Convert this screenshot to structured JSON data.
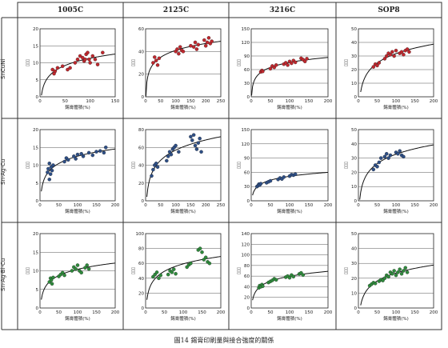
{
  "columns": [
    "1005C",
    "2125C",
    "3216C",
    "SOP8"
  ],
  "rows": [
    "SnCuNi",
    "Sn-Ag-Cu",
    "Sn-Ag-Bi-Cu"
  ],
  "caption": "圖14 錫膏印刷量與接合強度的關係",
  "colors": {
    "SnCuNi": "#c0282e",
    "Sn-Ag-Cu": "#2e4f86",
    "Sn-Ag-Bi-Cu": "#2f8a3c",
    "curve": "#111111"
  },
  "chart_data": [
    {
      "type": "scatter",
      "row": "SnCuNi",
      "column": "1005C",
      "xlabel": "錫膏體積(%)",
      "ylabel": "▯▯▯",
      "xlim": [
        0,
        150
      ],
      "ylim": [
        0,
        20
      ],
      "xticks": [
        0,
        50,
        100,
        150
      ],
      "yticks": [
        0,
        5,
        10,
        15,
        20
      ],
      "points": [
        [
          25,
          8
        ],
        [
          30,
          7.5
        ],
        [
          28,
          6.8
        ],
        [
          35,
          8.5
        ],
        [
          45,
          9
        ],
        [
          55,
          8
        ],
        [
          60,
          8.5
        ],
        [
          70,
          10
        ],
        [
          75,
          11
        ],
        [
          80,
          12
        ],
        [
          85,
          11.5
        ],
        [
          88,
          10.5
        ],
        [
          90,
          11
        ],
        [
          92,
          12.5
        ],
        [
          95,
          13
        ],
        [
          98,
          11
        ],
        [
          100,
          10
        ],
        [
          105,
          12
        ],
        [
          110,
          11
        ],
        [
          115,
          9.5
        ],
        [
          125,
          13
        ]
      ]
    },
    {
      "type": "scatter",
      "row": "SnCuNi",
      "column": "2125C",
      "xlabel": "錫膏體積(%)",
      "ylabel": "▯▯▯",
      "xlim": [
        0,
        250
      ],
      "ylim": [
        0,
        60
      ],
      "xticks": [
        0,
        50,
        100,
        150,
        200,
        250
      ],
      "yticks": [
        0,
        20,
        40,
        60
      ],
      "points": [
        [
          25,
          30
        ],
        [
          30,
          35
        ],
        [
          35,
          32
        ],
        [
          40,
          28
        ],
        [
          45,
          34
        ],
        [
          100,
          40
        ],
        [
          105,
          42
        ],
        [
          110,
          38
        ],
        [
          115,
          44
        ],
        [
          120,
          41
        ],
        [
          125,
          40
        ],
        [
          150,
          45
        ],
        [
          160,
          44
        ],
        [
          165,
          48
        ],
        [
          170,
          42
        ],
        [
          175,
          46
        ],
        [
          195,
          50
        ],
        [
          200,
          45
        ],
        [
          205,
          48
        ],
        [
          210,
          52
        ],
        [
          215,
          47
        ],
        [
          220,
          49
        ]
      ]
    },
    {
      "type": "scatter",
      "row": "SnCuNi",
      "column": "3216C",
      "xlabel": "錫膏體積(%)",
      "ylabel": "▯▯▯",
      "xlim": [
        0,
        200
      ],
      "ylim": [
        0,
        150
      ],
      "xticks": [
        0,
        50,
        100,
        150,
        200
      ],
      "yticks": [
        0,
        30,
        60,
        90,
        120,
        150
      ],
      "points": [
        [
          25,
          55
        ],
        [
          28,
          58
        ],
        [
          30,
          56
        ],
        [
          50,
          62
        ],
        [
          55,
          68
        ],
        [
          60,
          65
        ],
        [
          65,
          70
        ],
        [
          85,
          72
        ],
        [
          90,
          75
        ],
        [
          95,
          70
        ],
        [
          100,
          78
        ],
        [
          105,
          74
        ],
        [
          110,
          80
        ],
        [
          115,
          76
        ],
        [
          130,
          85
        ],
        [
          135,
          82
        ],
        [
          140,
          78
        ],
        [
          145,
          84
        ]
      ]
    },
    {
      "type": "scatter",
      "row": "SnCuNi",
      "column": "SOP8",
      "xlabel": "錫膏體積(%)",
      "ylabel": "▯▯▯",
      "xlim": [
        0,
        200
      ],
      "ylim": [
        0,
        50
      ],
      "xticks": [
        0,
        50,
        100,
        150,
        200
      ],
      "yticks": [
        0,
        10,
        20,
        30,
        40,
        50
      ],
      "points": [
        [
          40,
          22
        ],
        [
          45,
          24
        ],
        [
          50,
          23
        ],
        [
          55,
          25
        ],
        [
          70,
          28
        ],
        [
          75,
          30
        ],
        [
          80,
          32
        ],
        [
          85,
          31
        ],
        [
          90,
          33
        ],
        [
          95,
          30
        ],
        [
          100,
          34
        ],
        [
          110,
          32
        ],
        [
          115,
          33
        ],
        [
          120,
          31
        ],
        [
          125,
          34
        ],
        [
          130,
          35
        ],
        [
          135,
          33
        ]
      ]
    },
    {
      "type": "scatter",
      "row": "Sn-Ag-Cu",
      "column": "1005C",
      "xlabel": "錫膏體積(%)",
      "ylabel": "▯▯▯",
      "xlim": [
        0,
        200
      ],
      "ylim": [
        0,
        20
      ],
      "xticks": [
        0,
        50,
        100,
        150,
        200
      ],
      "yticks": [
        0,
        5,
        10,
        15,
        20
      ],
      "points": [
        [
          20,
          8
        ],
        [
          22,
          9
        ],
        [
          25,
          6
        ],
        [
          28,
          7.5
        ],
        [
          30,
          9.5
        ],
        [
          32,
          8.5
        ],
        [
          35,
          10
        ],
        [
          25,
          10.5
        ],
        [
          65,
          11
        ],
        [
          70,
          12
        ],
        [
          75,
          11.5
        ],
        [
          90,
          12.5
        ],
        [
          95,
          11.8
        ],
        [
          100,
          13
        ],
        [
          110,
          13.2
        ],
        [
          115,
          12.5
        ],
        [
          130,
          13.5
        ],
        [
          140,
          12.8
        ],
        [
          150,
          13.8
        ],
        [
          160,
          14
        ],
        [
          170,
          13.5
        ],
        [
          175,
          15
        ]
      ]
    },
    {
      "type": "scatter",
      "row": "Sn-Ag-Cu",
      "column": "2125C",
      "xlabel": "錫膏體積(%)",
      "ylabel": "▯▯▯",
      "xlim": [
        0,
        250
      ],
      "ylim": [
        0,
        80
      ],
      "xticks": [
        0,
        50,
        100,
        150,
        200,
        250
      ],
      "yticks": [
        0,
        20,
        40,
        60,
        80
      ],
      "points": [
        [
          20,
          28
        ],
        [
          25,
          35
        ],
        [
          30,
          40
        ],
        [
          35,
          42
        ],
        [
          40,
          38
        ],
        [
          70,
          45
        ],
        [
          75,
          50
        ],
        [
          80,
          55
        ],
        [
          85,
          52
        ],
        [
          90,
          58
        ],
        [
          95,
          60
        ],
        [
          100,
          62
        ],
        [
          110,
          55
        ],
        [
          150,
          72
        ],
        [
          155,
          68
        ],
        [
          160,
          74
        ],
        [
          165,
          62
        ],
        [
          170,
          58
        ],
        [
          175,
          65
        ],
        [
          180,
          70
        ],
        [
          185,
          55
        ]
      ]
    },
    {
      "type": "scatter",
      "row": "Sn-Ag-Cu",
      "column": "3216C",
      "xlabel": "錫膏體積(%)",
      "ylabel": "▯▯▯",
      "xlim": [
        0,
        200
      ],
      "ylim": [
        0,
        150
      ],
      "xticks": [
        0,
        50,
        100,
        150,
        200
      ],
      "yticks": [
        0,
        30,
        60,
        90,
        120,
        150
      ],
      "points": [
        [
          15,
          30
        ],
        [
          18,
          32
        ],
        [
          20,
          35
        ],
        [
          22,
          33
        ],
        [
          25,
          36
        ],
        [
          40,
          38
        ],
        [
          45,
          40
        ],
        [
          50,
          42
        ],
        [
          70,
          45
        ],
        [
          75,
          48
        ],
        [
          80,
          46
        ],
        [
          85,
          50
        ],
        [
          100,
          52
        ],
        [
          105,
          55
        ],
        [
          110,
          54
        ],
        [
          115,
          56
        ]
      ]
    },
    {
      "type": "scatter",
      "row": "Sn-Ag-Cu",
      "column": "SOP8",
      "xlabel": "錫膏體積(%)",
      "ylabel": "▯▯▯",
      "xlim": [
        0,
        200
      ],
      "ylim": [
        0,
        50
      ],
      "xticks": [
        0,
        50,
        100,
        150,
        200
      ],
      "yticks": [
        0,
        10,
        20,
        30,
        40,
        50
      ],
      "points": [
        [
          40,
          22
        ],
        [
          45,
          25
        ],
        [
          50,
          24
        ],
        [
          55,
          27
        ],
        [
          60,
          30
        ],
        [
          70,
          31
        ],
        [
          75,
          33
        ],
        [
          80,
          30
        ],
        [
          85,
          32
        ],
        [
          100,
          34
        ],
        [
          105,
          33
        ],
        [
          110,
          35
        ],
        [
          115,
          32
        ],
        [
          120,
          31
        ]
      ]
    },
    {
      "type": "scatter",
      "row": "Sn-Ag-Bi-Cu",
      "column": "1005C",
      "xlabel": "錫膏體積(%)",
      "ylabel": "▯▯▯",
      "xlim": [
        0,
        200
      ],
      "ylim": [
        0,
        20
      ],
      "xticks": [
        0,
        50,
        100,
        150,
        200
      ],
      "yticks": [
        0,
        5,
        10,
        15,
        20
      ],
      "points": [
        [
          25,
          7
        ],
        [
          28,
          8
        ],
        [
          30,
          7.5
        ],
        [
          32,
          6.5
        ],
        [
          35,
          8.2
        ],
        [
          50,
          8.5
        ],
        [
          55,
          9
        ],
        [
          60,
          9.5
        ],
        [
          65,
          8.8
        ],
        [
          85,
          10
        ],
        [
          90,
          11
        ],
        [
          95,
          10.5
        ],
        [
          100,
          11.5
        ],
        [
          105,
          10
        ],
        [
          110,
          9.5
        ],
        [
          120,
          10.8
        ],
        [
          125,
          11.5
        ],
        [
          130,
          10.5
        ]
      ]
    },
    {
      "type": "scatter",
      "row": "Sn-Ag-Bi-Cu",
      "column": "2125C",
      "xlabel": "錫膏體積(%)",
      "ylabel": "▯▯▯",
      "xlim": [
        0,
        200
      ],
      "ylim": [
        0,
        100
      ],
      "xticks": [
        0,
        50,
        100,
        150,
        200
      ],
      "yticks": [
        0,
        20,
        40,
        60,
        80,
        100
      ],
      "points": [
        [
          20,
          42
        ],
        [
          25,
          45
        ],
        [
          30,
          48
        ],
        [
          35,
          40
        ],
        [
          40,
          44
        ],
        [
          60,
          45
        ],
        [
          65,
          50
        ],
        [
          70,
          48
        ],
        [
          75,
          52
        ],
        [
          80,
          46
        ],
        [
          110,
          55
        ],
        [
          115,
          58
        ],
        [
          120,
          60
        ],
        [
          140,
          78
        ],
        [
          145,
          80
        ],
        [
          150,
          75
        ],
        [
          155,
          65
        ],
        [
          160,
          68
        ],
        [
          165,
          62
        ],
        [
          170,
          60
        ]
      ]
    },
    {
      "type": "scatter",
      "row": "Sn-Ag-Bi-Cu",
      "column": "3216C",
      "xlabel": "錫膏體積(%)",
      "ylabel": "▯▯▯",
      "xlim": [
        0,
        200
      ],
      "ylim": [
        0,
        140
      ],
      "xticks": [
        0,
        50,
        100,
        150,
        200
      ],
      "yticks": [
        0,
        20,
        40,
        60,
        80,
        100,
        120,
        140
      ],
      "points": [
        [
          20,
          38
        ],
        [
          22,
          42
        ],
        [
          25,
          40
        ],
        [
          28,
          44
        ],
        [
          30,
          41
        ],
        [
          45,
          48
        ],
        [
          50,
          50
        ],
        [
          55,
          52
        ],
        [
          60,
          55
        ],
        [
          65,
          53
        ],
        [
          90,
          58
        ],
        [
          95,
          60
        ],
        [
          100,
          57
        ],
        [
          105,
          62
        ],
        [
          110,
          59
        ],
        [
          125,
          64
        ],
        [
          130,
          66
        ],
        [
          135,
          62
        ]
      ]
    },
    {
      "type": "scatter",
      "row": "Sn-Ag-Bi-Cu",
      "column": "SOP8",
      "xlabel": "錫膏體積(%)",
      "ylabel": "▯▯▯",
      "xlim": [
        0,
        200
      ],
      "ylim": [
        0,
        50
      ],
      "xticks": [
        0,
        50,
        100,
        150,
        200
      ],
      "yticks": [
        0,
        10,
        20,
        30,
        40,
        50
      ],
      "points": [
        [
          30,
          15
        ],
        [
          35,
          16
        ],
        [
          40,
          17
        ],
        [
          45,
          16.5
        ],
        [
          55,
          18
        ],
        [
          60,
          19
        ],
        [
          65,
          18.5
        ],
        [
          70,
          20
        ],
        [
          75,
          22
        ],
        [
          80,
          21
        ],
        [
          85,
          24
        ],
        [
          90,
          23
        ],
        [
          95,
          25
        ],
        [
          100,
          22
        ],
        [
          105,
          24
        ],
        [
          110,
          26
        ],
        [
          115,
          23
        ],
        [
          120,
          25
        ],
        [
          125,
          27
        ],
        [
          130,
          24
        ]
      ]
    }
  ]
}
